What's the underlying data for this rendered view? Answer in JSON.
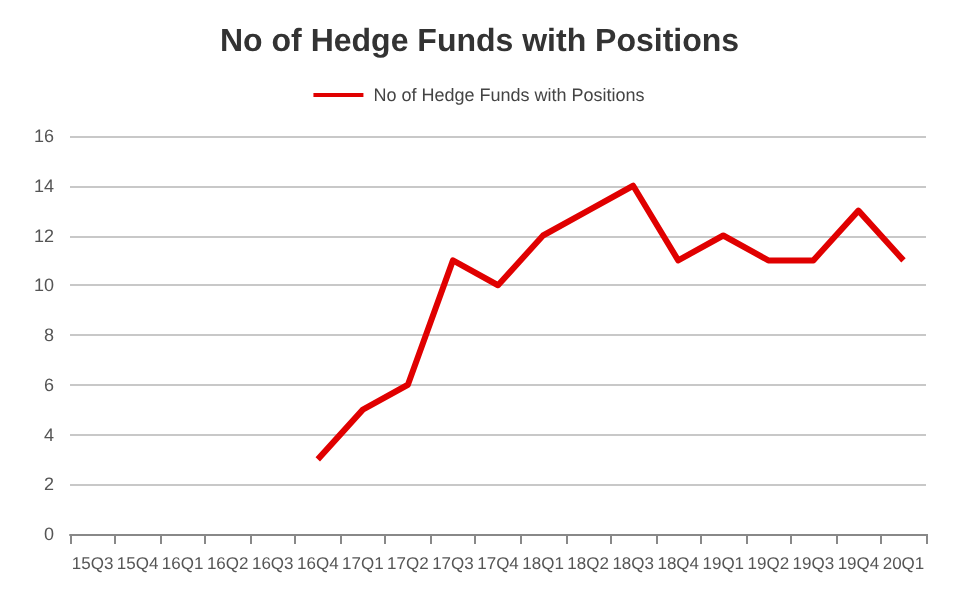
{
  "chart_data": {
    "type": "line",
    "title": "No of Hedge Funds with Positions",
    "categories": [
      "15Q3",
      "15Q4",
      "16Q1",
      "16Q2",
      "16Q3",
      "16Q4",
      "17Q1",
      "17Q2",
      "17Q3",
      "17Q4",
      "18Q1",
      "18Q2",
      "18Q3",
      "18Q4",
      "19Q1",
      "19Q2",
      "19Q3",
      "19Q4",
      "20Q1"
    ],
    "series": [
      {
        "name": "No of Hedge Funds with Positions",
        "color": "#e00000",
        "values": [
          null,
          null,
          null,
          null,
          null,
          3,
          5,
          6,
          11,
          10,
          12,
          13,
          14,
          11,
          12,
          11,
          11,
          13,
          11
        ]
      }
    ],
    "ylim": [
      0,
      16
    ],
    "yticks": [
      0,
      2,
      4,
      6,
      8,
      10,
      12,
      14,
      16
    ],
    "grid": "y",
    "legend": "top",
    "marker": "none",
    "line_style": "solid"
  }
}
